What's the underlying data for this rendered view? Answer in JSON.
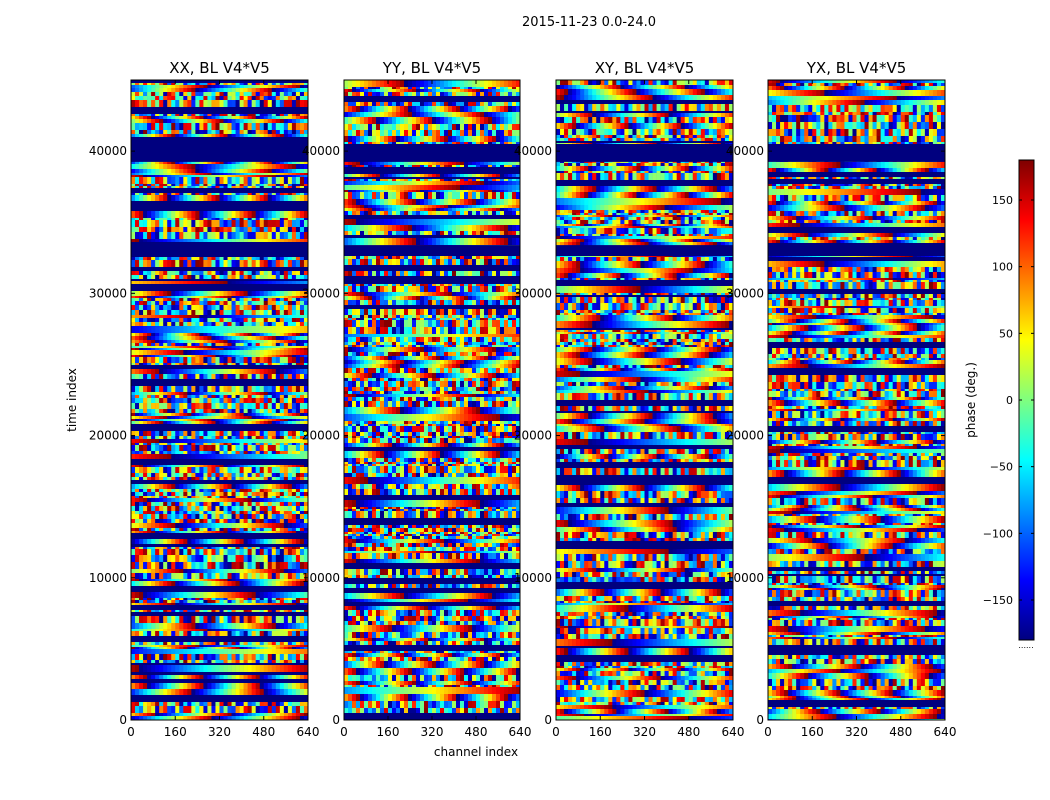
{
  "figure": {
    "suptitle": "2015-11-23 0.0-24.0",
    "colorbar_label": "phase (deg.)",
    "colorbar_ticks": [
      -150,
      -100,
      -50,
      0,
      50,
      100,
      150
    ],
    "colorbar_range": [
      -180,
      180
    ],
    "colorbar_extra_text": "......"
  },
  "chart_data": {
    "type": "heatmap",
    "colormap": "jet",
    "xlabel": "channel index",
    "ylabel": "time index",
    "xlim": [
      0,
      640
    ],
    "ylim": [
      0,
      45000
    ],
    "xticks": [
      0,
      160,
      320,
      480,
      640
    ],
    "yticks": [
      0,
      10000,
      20000,
      30000,
      40000
    ],
    "panels": [
      {
        "title": "XX, BL V4*V5",
        "polarization": "XX"
      },
      {
        "title": "YY, BL V4*V5",
        "polarization": "YY"
      },
      {
        "title": "XY, BL V4*V5",
        "polarization": "XY"
      },
      {
        "title": "YX, BL V4*V5",
        "polarization": "YX"
      }
    ],
    "zlabel": "phase (deg.)",
    "zlim": [
      -180,
      180
    ],
    "jet_stops": [
      "#00007f",
      "#0000ff",
      "#007fff",
      "#00ffff",
      "#7fff7f",
      "#ffff00",
      "#ff7f00",
      "#ff0000",
      "#7f0000"
    ]
  }
}
